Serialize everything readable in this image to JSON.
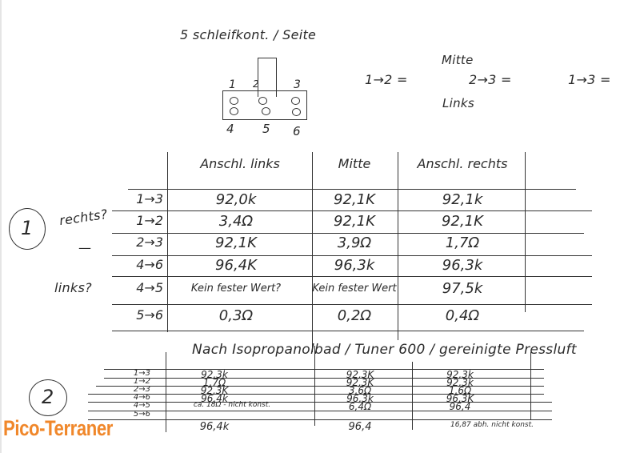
{
  "header": {
    "title": "5 schleifkont. / Seite"
  },
  "diagram": {
    "pins_top": [
      "1",
      "2",
      "3"
    ],
    "pins_bottom": [
      "4",
      "5",
      "6"
    ]
  },
  "notes": {
    "n12": "1→2 =",
    "mitte": "Mitte",
    "n23": "2→3 =",
    "n13": "1→3 =",
    "links": "Links"
  },
  "table1": {
    "marker": "1",
    "side_notes": [
      "rechts?",
      "—",
      "links?"
    ],
    "headers": [
      "Anschl. links",
      "Mitte",
      "Anschl. rechts"
    ],
    "rows": [
      {
        "label": "1→3",
        "values": [
          "92,0k",
          "92,1K",
          "92,1k"
        ]
      },
      {
        "label": "1→2",
        "values": [
          "3,4Ω",
          "92,1K",
          "92,1K"
        ]
      },
      {
        "label": "2→3",
        "values": [
          "92,1K",
          "3,9Ω",
          "1,7Ω"
        ]
      },
      {
        "label": "4→6",
        "values": [
          "96,4K",
          "96,3k",
          "96,3k"
        ]
      },
      {
        "label": "4→5",
        "values": [
          "Kein fester Wert?",
          "Kein fester Wert",
          "97,5k"
        ]
      },
      {
        "label": "5→6",
        "values": [
          "0,3Ω",
          "0,2Ω",
          "0,4Ω"
        ]
      }
    ]
  },
  "table2": {
    "marker": "2",
    "title": "Nach Isopropanolbad / Tuner 600 / gereinigte Pressluft",
    "rows": [
      {
        "label": "1→3",
        "values": [
          "92,3k",
          "92,3K",
          "92,3k"
        ]
      },
      {
        "label": "1→2",
        "values": [
          "1,7Ω",
          "92,3K",
          "92,3k"
        ]
      },
      {
        "label": "2→3",
        "values": [
          "92,3K",
          "3,6Ω",
          "1,6Ω"
        ]
      },
      {
        "label": "4→6",
        "values": [
          "96,4k",
          "96,3k",
          "96,3K"
        ]
      },
      {
        "label": "4→5",
        "values": [
          "ca. 18Ω - nicht konst.",
          "6,4Ω",
          "96,4"
        ]
      },
      {
        "label": "5→6",
        "values": [
          "96,4k",
          "96,4",
          "16,87 abh. nicht konst."
        ]
      }
    ]
  },
  "watermark": {
    "text": "Pico-Terraner",
    "color": "#f0872a"
  }
}
